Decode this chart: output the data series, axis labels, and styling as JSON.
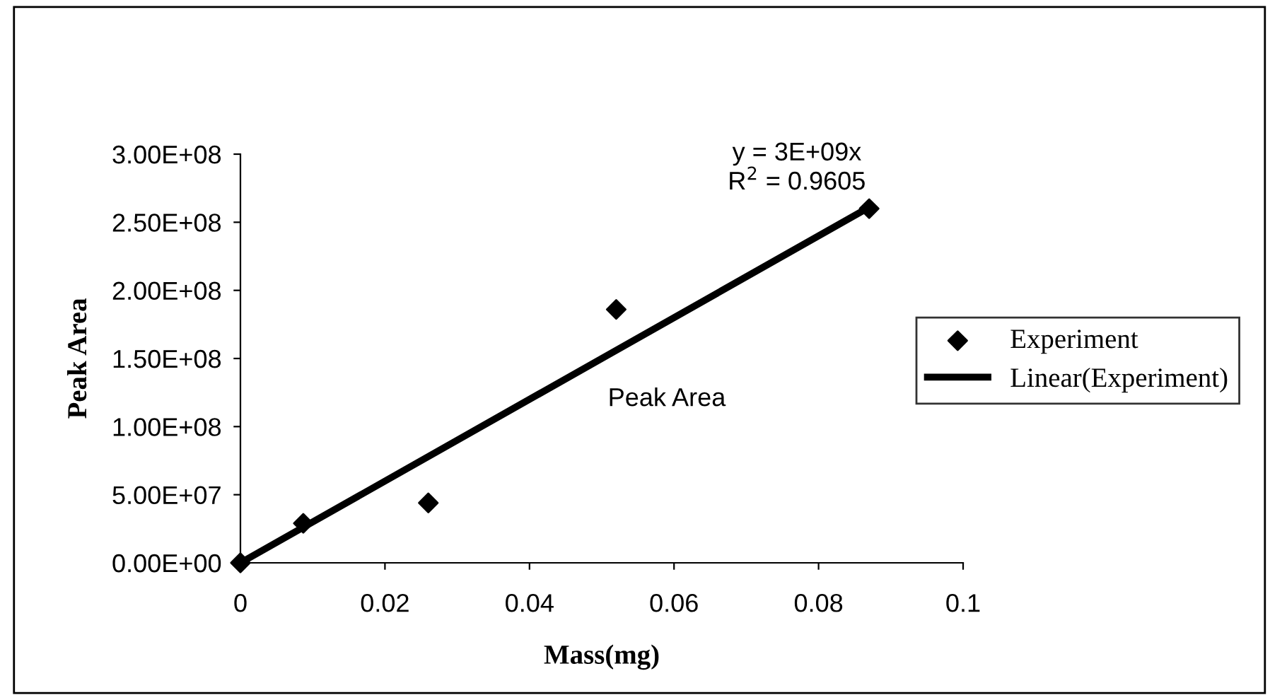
{
  "chart_data": {
    "type": "scatter",
    "xlabel": "Mass(mg)",
    "ylabel": "Peak Area",
    "xlim": [
      0,
      0.1
    ],
    "xticks": [
      0,
      0.02,
      0.04,
      0.06,
      0.08,
      0.1
    ],
    "ylim": [
      0,
      300000000
    ],
    "yticks": [
      {
        "value": 0,
        "label": "0.00E+00"
      },
      {
        "value": 50000000,
        "label": "5.00E+07"
      },
      {
        "value": 100000000,
        "label": "1.00E+08"
      },
      {
        "value": 150000000,
        "label": "1.50E+08"
      },
      {
        "value": 200000000,
        "label": "2.00E+08"
      },
      {
        "value": 250000000,
        "label": "2.50E+08"
      },
      {
        "value": 300000000,
        "label": "3.00E+08"
      }
    ],
    "grid": false,
    "legend": "right",
    "marker": "diamond",
    "series": [
      {
        "name": "Experiment",
        "color": "#000000",
        "x": [
          0,
          0.0087,
          0.026,
          0.052,
          0.087
        ],
        "values": [
          0,
          29000000,
          44000000,
          186000000,
          260000000
        ]
      },
      {
        "name": "Linear(Experiment)",
        "type": "line",
        "color": "#000000",
        "marker": "none",
        "x": [
          0,
          0.087
        ],
        "values": [
          0,
          261000000
        ]
      }
    ],
    "annotations": [
      "y = 3E+09x\nR$^{2}$ = 0.9605",
      "Peak Area"
    ]
  }
}
